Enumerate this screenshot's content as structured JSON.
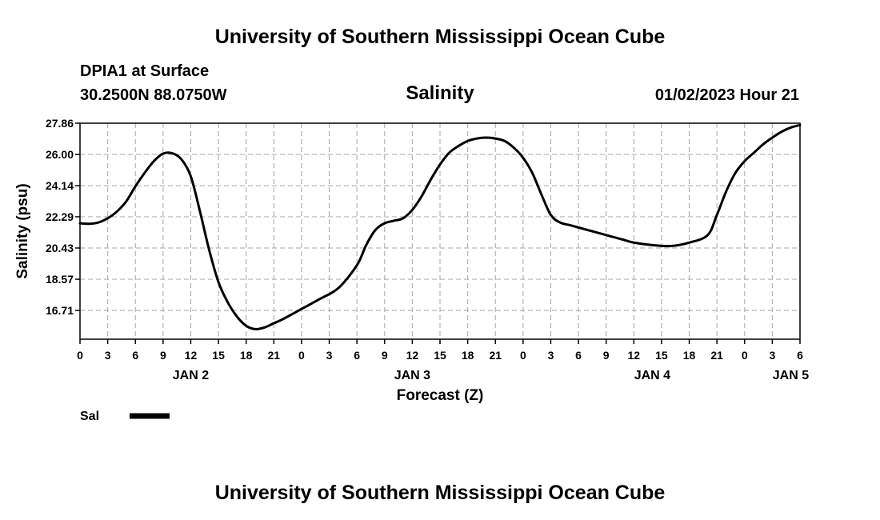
{
  "header": {
    "title": "University of Southern Mississippi Ocean Cube",
    "station": "DPIA1 at Surface",
    "coords": "30.2500N  88.0750W",
    "datetime": "01/02/2023 Hour 21"
  },
  "footer": {
    "title": "University of Southern Mississippi Ocean Cube"
  },
  "legend": {
    "label": "Sal"
  },
  "chart_data": {
    "type": "line",
    "title": "Salinity",
    "xlabel": "Forecast (Z)",
    "ylabel": "Salinity (psu)",
    "ylim": [
      15.0,
      27.86
    ],
    "y_ticks": [
      "27.86",
      "26.00",
      "24.14",
      "22.29",
      "20.43",
      "18.57",
      "16.71"
    ],
    "x_range_hours": [
      0,
      78
    ],
    "x_tick_labels": [
      "0",
      "3",
      "6",
      "9",
      "12",
      "15",
      "18",
      "21",
      "0",
      "3",
      "6",
      "9",
      "12",
      "15",
      "18",
      "21",
      "0",
      "3",
      "6",
      "9",
      "12",
      "15",
      "18",
      "21",
      "0",
      "3",
      "6"
    ],
    "day_labels": [
      {
        "label": "JAN 2",
        "hour": 12
      },
      {
        "label": "JAN 3",
        "hour": 36
      },
      {
        "label": "JAN 4",
        "hour": 62
      },
      {
        "label": "JAN 5",
        "hour": 77
      }
    ],
    "grid": true,
    "series": [
      {
        "name": "Sal",
        "x": [
          0,
          1,
          2,
          3,
          4,
          5,
          6,
          7,
          8,
          9,
          10,
          11,
          12,
          13,
          14,
          15,
          16,
          17,
          18,
          19,
          20,
          21,
          22,
          24,
          26,
          28,
          30,
          31,
          32,
          33,
          34,
          35,
          36,
          37,
          38,
          39,
          40,
          41,
          42,
          43,
          44,
          45,
          46,
          47,
          48,
          49,
          50,
          51,
          52,
          53,
          54,
          55,
          56,
          57,
          58,
          59,
          60,
          62,
          64,
          66,
          68,
          69,
          70,
          71,
          72,
          73,
          74,
          75,
          76,
          77,
          78
        ],
        "y": [
          21.9,
          21.87,
          21.95,
          22.2,
          22.6,
          23.2,
          24.1,
          24.9,
          25.6,
          26.05,
          26.07,
          25.7,
          24.7,
          22.6,
          20.3,
          18.4,
          17.2,
          16.35,
          15.8,
          15.6,
          15.7,
          15.95,
          16.2,
          16.8,
          17.4,
          18.05,
          19.4,
          20.6,
          21.5,
          21.9,
          22.05,
          22.2,
          22.7,
          23.5,
          24.5,
          25.4,
          26.1,
          26.5,
          26.8,
          26.95,
          27.0,
          26.95,
          26.8,
          26.4,
          25.8,
          24.9,
          23.6,
          22.4,
          21.95,
          21.8,
          21.65,
          21.5,
          21.35,
          21.2,
          21.05,
          20.9,
          20.75,
          20.6,
          20.55,
          20.75,
          21.2,
          22.4,
          23.8,
          24.9,
          25.6,
          26.1,
          26.6,
          27.0,
          27.35,
          27.6,
          27.75
        ]
      }
    ]
  }
}
